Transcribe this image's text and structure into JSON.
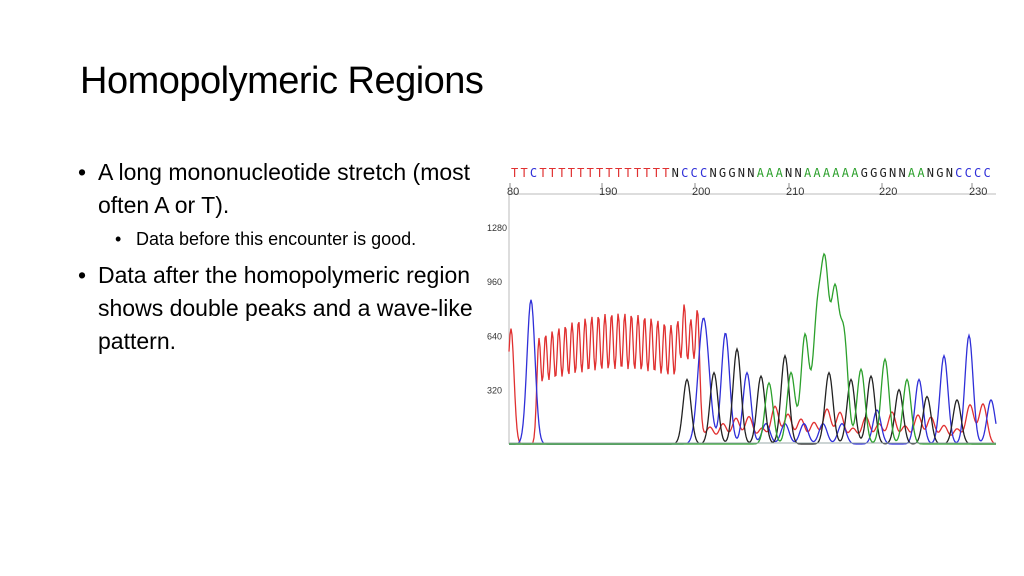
{
  "slide": {
    "title": "Homopolymeric Regions",
    "bullets": [
      {
        "text": "A long mononucleotide stretch (most often A or T).",
        "level": 1
      },
      {
        "text": "Data before this encounter is good.",
        "level": 2
      },
      {
        "text": "Data after the homopolymeric region shows double peaks and a wave-like pattern.",
        "level": 1
      }
    ]
  },
  "chart_data": {
    "type": "line",
    "title": "",
    "xlabel": "",
    "ylabel": "",
    "base_sequence": "TTCTTTTTTTTTTTTTTNCCCNGGNNAAANNAAAAAAGGGNNAANGNCCCC",
    "x_ticks": [
      "80",
      "190",
      "200",
      "210",
      "220",
      "230"
    ],
    "y_ticks": [
      "1280",
      "960",
      "640",
      "320"
    ],
    "ylim": [
      0,
      1450
    ],
    "colors": {
      "A": "#2ca02c",
      "C": "#2f2fd8",
      "G": "#222222",
      "T": "#e03030"
    },
    "grid": false
  }
}
